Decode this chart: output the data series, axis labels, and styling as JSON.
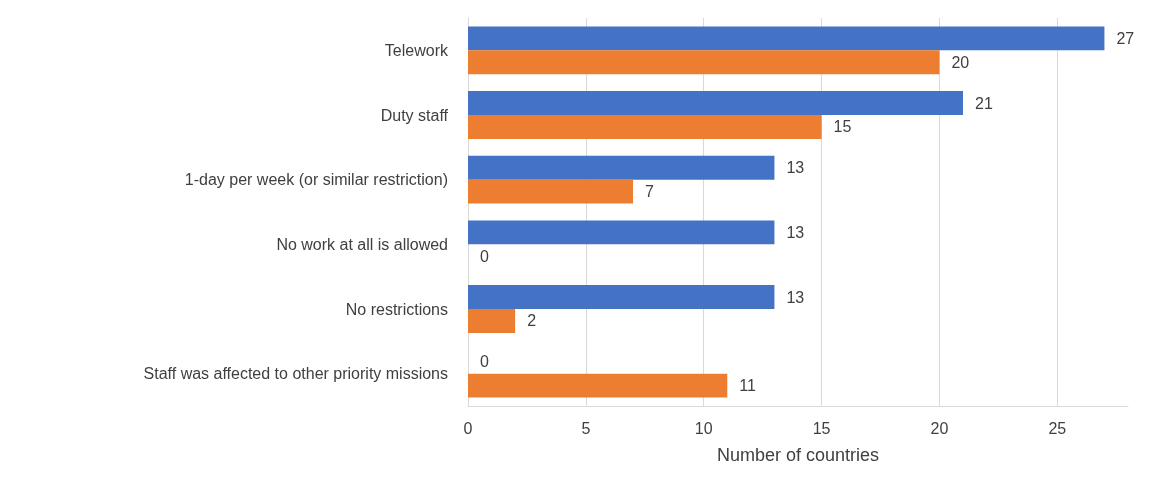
{
  "chart_data": {
    "type": "bar",
    "orientation": "horizontal",
    "xlabel": "Number of countries",
    "categories": [
      "Telework",
      "Duty staff",
      "1-day per week (or similar restriction)",
      "No work at all is allowed",
      "No restrictions",
      "Staff was affected to other priority missions"
    ],
    "series": [
      {
        "color": "#4472c4",
        "values": [
          27,
          21,
          13,
          13,
          13,
          0
        ]
      },
      {
        "color": "#ed7d31",
        "values": [
          20,
          15,
          7,
          0,
          2,
          11
        ]
      }
    ],
    "xlim": [
      0,
      28
    ],
    "xticks": [
      0,
      5,
      10,
      15,
      20,
      25
    ],
    "grid": "x",
    "data_labels": true
  }
}
